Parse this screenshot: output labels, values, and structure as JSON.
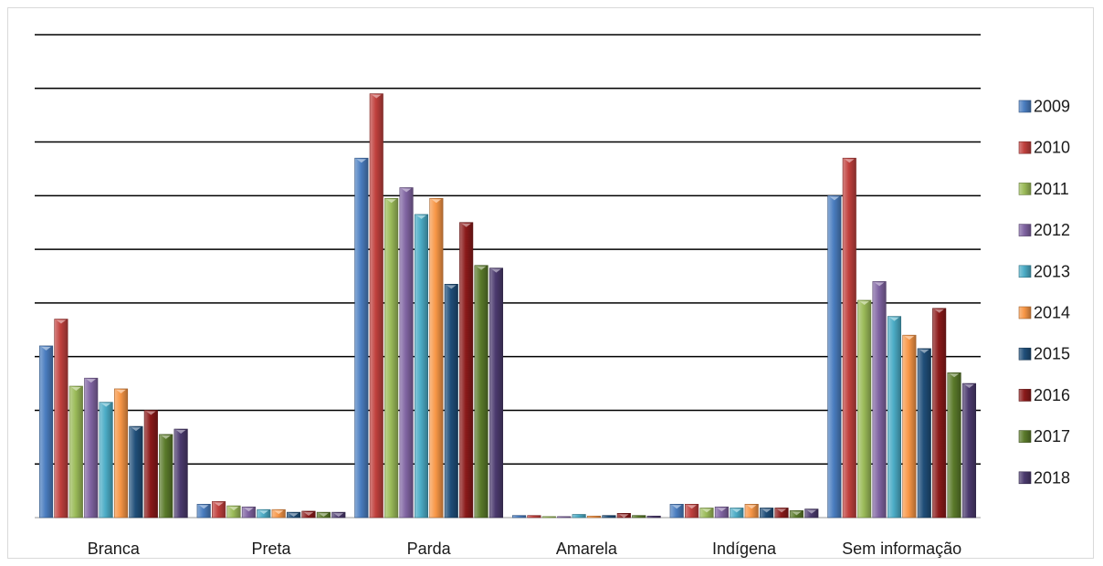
{
  "chart_data": {
    "type": "bar",
    "title": "",
    "xlabel": "",
    "ylabel": "",
    "ylim": [
      0,
      9
    ],
    "grid": true,
    "legend_position": "right",
    "categories": [
      "Branca",
      "Preta",
      "Parda",
      "Amarela",
      "Indígena",
      "Sem informação"
    ],
    "series": [
      {
        "name": "2009",
        "color": "#4a7dc0",
        "values": [
          3.2,
          0.25,
          6.7,
          0.04,
          0.25,
          6.0
        ]
      },
      {
        "name": "2010",
        "color": "#c0403d",
        "values": [
          3.7,
          0.3,
          7.9,
          0.04,
          0.25,
          6.7
        ]
      },
      {
        "name": "2011",
        "color": "#9bbb59",
        "values": [
          2.45,
          0.22,
          5.95,
          0.02,
          0.18,
          4.05
        ]
      },
      {
        "name": "2012",
        "color": "#8064a2",
        "values": [
          2.6,
          0.2,
          6.15,
          0.02,
          0.2,
          4.4
        ]
      },
      {
        "name": "2013",
        "color": "#4bacc6",
        "values": [
          2.15,
          0.15,
          5.65,
          0.06,
          0.18,
          3.75
        ]
      },
      {
        "name": "2014",
        "color": "#f79646",
        "values": [
          2.4,
          0.15,
          5.95,
          0.03,
          0.25,
          3.4
        ]
      },
      {
        "name": "2015",
        "color": "#1f4e79",
        "values": [
          1.7,
          0.1,
          4.35,
          0.04,
          0.18,
          3.15
        ]
      },
      {
        "name": "2016",
        "color": "#8b1a1a",
        "values": [
          2.0,
          0.12,
          5.5,
          0.08,
          0.18,
          3.9
        ]
      },
      {
        "name": "2017",
        "color": "#5a7a2a",
        "values": [
          1.55,
          0.1,
          4.7,
          0.04,
          0.13,
          2.7
        ]
      },
      {
        "name": "2018",
        "color": "#4b3a6e",
        "values": [
          1.65,
          0.1,
          4.65,
          0.03,
          0.16,
          2.5
        ]
      }
    ]
  }
}
